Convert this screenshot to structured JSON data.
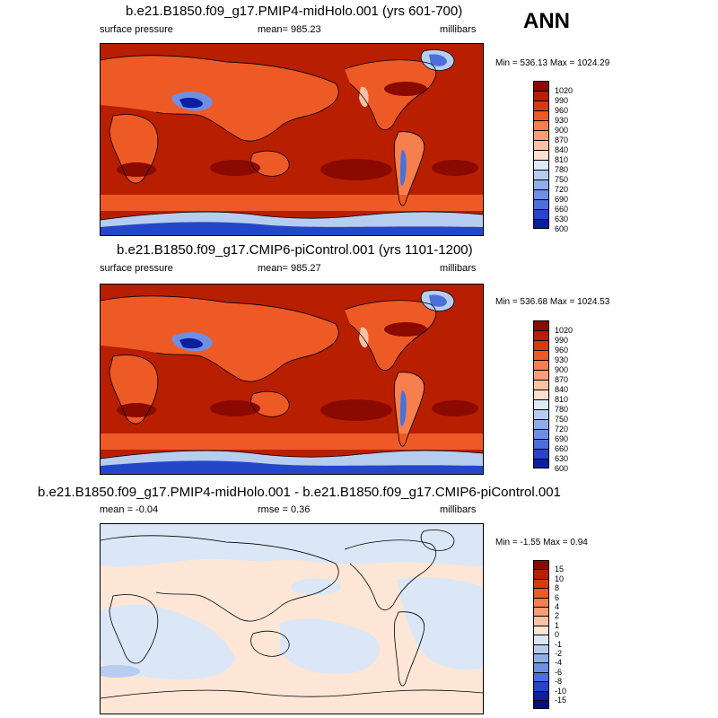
{
  "season": "ANN",
  "chart_data": [
    {
      "type": "heatmap",
      "title": "b.e21.B1850.f09_g17.PMIP4-midHolo.001 (yrs 601-700)",
      "variable": "surface pressure",
      "mean_label": "mean= 985.23",
      "units": "millibars",
      "minmax": "Min = 536.13 Max = 1024.29",
      "min": 536.13,
      "max": 1024.29,
      "mean": 985.23,
      "levels": [
        "1020",
        "990",
        "960",
        "930",
        "900",
        "870",
        "840",
        "810",
        "780",
        "750",
        "720",
        "690",
        "660",
        "630",
        "600"
      ],
      "colors": [
        "#8b0a00",
        "#b81e00",
        "#d83a10",
        "#ee5a26",
        "#f77e4d",
        "#fb9e76",
        "#fdc2a6",
        "#fde0cf",
        "#dfeaf7",
        "#b7cdf0",
        "#8eaeea",
        "#6f8fe4",
        "#4b6fdb",
        "#2447c9",
        "#0a1ea0"
      ]
    },
    {
      "type": "heatmap",
      "title": "b.e21.B1850.f09_g17.CMIP6-piControl.001 (yrs 1101-1200)",
      "variable": "surface pressure",
      "mean_label": "mean= 985.27",
      "units": "millibars",
      "minmax": "Min = 536.68 Max = 1024.53",
      "min": 536.68,
      "max": 1024.53,
      "mean": 985.27,
      "levels": [
        "1020",
        "990",
        "960",
        "930",
        "900",
        "870",
        "840",
        "810",
        "780",
        "750",
        "720",
        "690",
        "660",
        "630",
        "600"
      ],
      "colors": [
        "#8b0a00",
        "#b81e00",
        "#d83a10",
        "#ee5a26",
        "#f77e4d",
        "#fb9e76",
        "#fdc2a6",
        "#fde0cf",
        "#dfeaf7",
        "#b7cdf0",
        "#8eaeea",
        "#6f8fe4",
        "#4b6fdb",
        "#2447c9",
        "#0a1ea0"
      ]
    },
    {
      "type": "heatmap",
      "title": "b.e21.B1850.f09_g17.PMIP4-midHolo.001 - b.e21.B1850.f09_g17.CMIP6-piControl.001",
      "mean_label": "mean =  -0.04",
      "rmse_label": "rmse =   0.36",
      "units": "millibars",
      "minmax": "Min =  -1.55 Max =   0.94",
      "min": -1.55,
      "max": 0.94,
      "mean": -0.04,
      "rmse": 0.36,
      "levels": [
        "15",
        "10",
        "8",
        "6",
        "4",
        "2",
        "1",
        "0",
        "-1",
        "-2",
        "-4",
        "-6",
        "-8",
        "-10",
        "-15"
      ],
      "colors": [
        "#8b0a00",
        "#b81e00",
        "#d83a10",
        "#ee5a26",
        "#f77e4d",
        "#fb9e76",
        "#fdc2a6",
        "#fde6d6",
        "#dbe7f7",
        "#b7cdf0",
        "#8eaeea",
        "#6f8fe4",
        "#4b6fdb",
        "#2447c9",
        "#0a1ea0",
        "#060f80"
      ]
    }
  ]
}
